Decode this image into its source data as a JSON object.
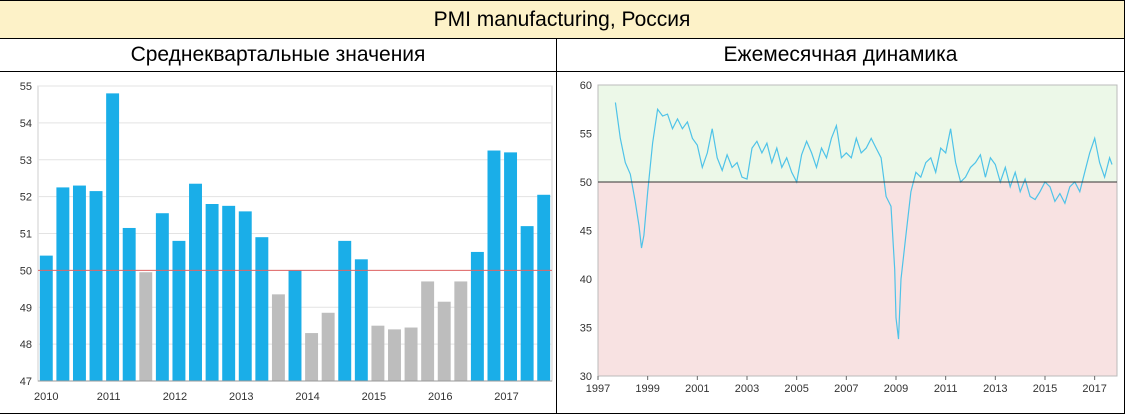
{
  "header": {
    "title": "PMI manufacturing, Россия"
  },
  "panels": {
    "left_title": "Среднеквартальные значения",
    "right_title": "Ежемесячная динамика"
  },
  "colors": {
    "above": "#1aaee8",
    "below": "#bdbdbd",
    "refline": "#e06666",
    "line": "#4fc3e8",
    "zone_green": "#ecf8e8",
    "zone_red": "#f8e2e2"
  },
  "chart_data": [
    {
      "type": "bar",
      "threshold": 50,
      "ylim": [
        47,
        55
      ],
      "yticks": [
        47,
        48,
        49,
        50,
        51,
        52,
        53,
        54,
        55
      ],
      "xtick_labels": [
        "2010",
        "2011",
        "2012",
        "2013",
        "2014",
        "2015",
        "2016",
        "2017"
      ],
      "values": [
        50.4,
        52.25,
        52.3,
        52.15,
        54.8,
        51.15,
        49.95,
        51.55,
        50.8,
        52.35,
        51.8,
        51.75,
        51.6,
        50.9,
        49.35,
        50.0,
        48.3,
        48.85,
        50.8,
        50.3,
        48.5,
        48.4,
        48.45,
        49.7,
        49.15,
        49.7,
        50.5,
        53.25,
        53.2,
        51.2,
        52.05
      ],
      "grid": true
    },
    {
      "type": "line",
      "ylim": [
        30,
        60
      ],
      "yticks": [
        30,
        35,
        40,
        45,
        50,
        55,
        60
      ],
      "xtick_labels": [
        "1997",
        "1999",
        "2001",
        "2003",
        "2005",
        "2007",
        "2009",
        "2011",
        "2013",
        "2015",
        "2017"
      ],
      "threshold": 50,
      "x": [
        1997.7,
        1997.9,
        1998.1,
        1998.3,
        1998.5,
        1998.65,
        1998.75,
        1998.85,
        1999.0,
        1999.2,
        1999.4,
        1999.6,
        1999.8,
        2000.0,
        2000.2,
        2000.4,
        2000.6,
        2000.8,
        2001.0,
        2001.2,
        2001.4,
        2001.6,
        2001.8,
        2002.0,
        2002.2,
        2002.4,
        2002.6,
        2002.8,
        2003.0,
        2003.2,
        2003.4,
        2003.6,
        2003.8,
        2004.0,
        2004.2,
        2004.4,
        2004.6,
        2004.8,
        2005.0,
        2005.2,
        2005.4,
        2005.6,
        2005.8,
        2006.0,
        2006.2,
        2006.4,
        2006.6,
        2006.8,
        2007.0,
        2007.2,
        2007.4,
        2007.6,
        2007.8,
        2008.0,
        2008.2,
        2008.4,
        2008.6,
        2008.8,
        2008.95,
        2009.0,
        2009.1,
        2009.2,
        2009.4,
        2009.6,
        2009.8,
        2010.0,
        2010.2,
        2010.4,
        2010.6,
        2010.8,
        2011.0,
        2011.2,
        2011.4,
        2011.6,
        2011.8,
        2012.0,
        2012.2,
        2012.4,
        2012.6,
        2012.8,
        2013.0,
        2013.2,
        2013.4,
        2013.6,
        2013.8,
        2014.0,
        2014.2,
        2014.4,
        2014.6,
        2014.8,
        2015.0,
        2015.2,
        2015.4,
        2015.6,
        2015.8,
        2016.0,
        2016.2,
        2016.4,
        2016.6,
        2016.8,
        2017.0,
        2017.2,
        2017.4,
        2017.6,
        2017.7
      ],
      "y": [
        58.2,
        54.5,
        52.0,
        50.8,
        48.0,
        45.5,
        43.2,
        44.5,
        49.0,
        54.0,
        57.5,
        56.8,
        57.0,
        55.5,
        56.5,
        55.5,
        56.2,
        54.5,
        53.8,
        51.5,
        53.0,
        55.5,
        52.5,
        51.2,
        52.8,
        51.5,
        52.0,
        50.5,
        50.3,
        53.5,
        54.2,
        53.0,
        54.0,
        52.0,
        53.5,
        51.5,
        52.5,
        51.0,
        50.0,
        52.8,
        54.2,
        53.0,
        51.5,
        53.5,
        52.5,
        54.5,
        55.8,
        52.5,
        53.0,
        52.5,
        54.5,
        53.0,
        53.5,
        54.5,
        53.5,
        52.5,
        48.5,
        47.5,
        41.0,
        36.0,
        33.8,
        40.0,
        44.5,
        49.0,
        51.0,
        50.5,
        52.0,
        52.5,
        51.0,
        53.5,
        53.0,
        55.5,
        52.0,
        50.0,
        50.5,
        51.5,
        52.0,
        52.8,
        50.5,
        52.5,
        51.8,
        50.0,
        51.5,
        49.5,
        51.0,
        49.0,
        50.3,
        48.5,
        48.2,
        49.0,
        50.0,
        49.5,
        48.0,
        48.8,
        47.8,
        49.5,
        50.0,
        49.0,
        51.0,
        53.0,
        54.5,
        52.0,
        50.5,
        52.5,
        51.8
      ],
      "grid": false
    }
  ]
}
